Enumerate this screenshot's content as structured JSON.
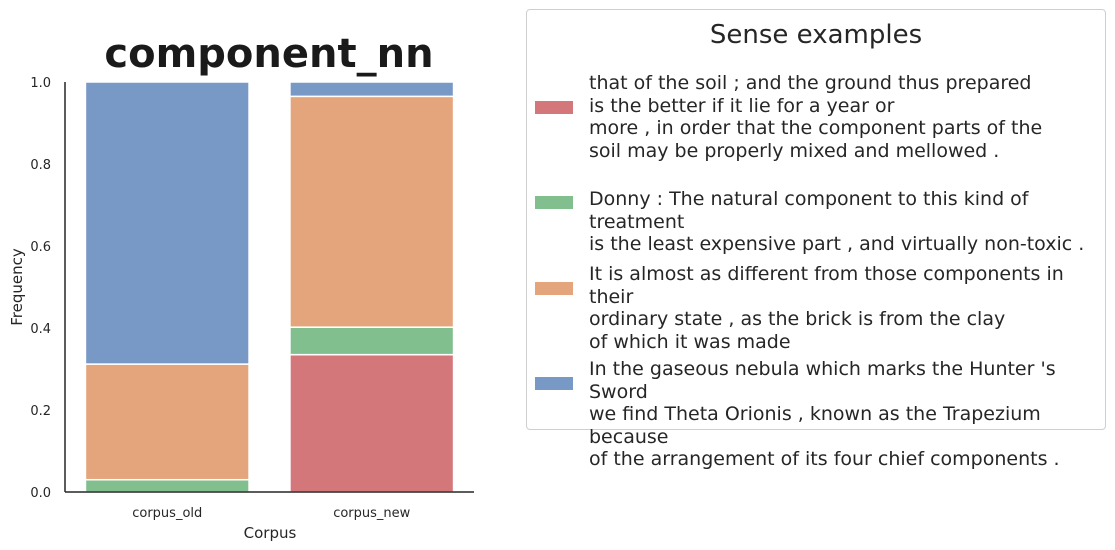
{
  "chart_data": {
    "type": "bar",
    "stacked": true,
    "title": "component_nn",
    "xlabel": "Corpus",
    "ylabel": "Frequency",
    "ylim": [
      0,
      1.0
    ],
    "yticks": [
      "0.0",
      "0.2",
      "0.4",
      "0.6",
      "0.8",
      "1.0"
    ],
    "categories": [
      "corpus_old",
      "corpus_new"
    ],
    "series": [
      {
        "key": "red",
        "color": "#d3777b",
        "values": [
          0.0,
          0.335
        ]
      },
      {
        "key": "green",
        "color": "#82bf8f",
        "values": [
          0.03,
          0.067
        ]
      },
      {
        "key": "orange",
        "color": "#e4a47c",
        "values": [
          0.282,
          0.563
        ]
      },
      {
        "key": "blue",
        "color": "#7898c6",
        "values": [
          0.688,
          0.035
        ]
      }
    ],
    "grid": false
  },
  "legend": {
    "title": "Sense examples",
    "entries": [
      {
        "color": "#d3777b",
        "text": "that of the soil ; and the ground thus prepared\nis the better if it lie for a year or\nmore , in order that the component parts of the\nsoil may be properly mixed and mellowed ."
      },
      {
        "color": "#82bf8f",
        "text": "Donny : The natural component to this kind of treatment\nis the least expensive part , and virtually non-toxic ."
      },
      {
        "color": "#e4a47c",
        "text": "It is almost as different from those components in their\nordinary state , as the brick is from the clay\nof which it was made"
      },
      {
        "color": "#7898c6",
        "text": "In the gaseous nebula which marks the Hunter 's Sword\nwe find Theta Orionis , known as the Trapezium because\nof the arrangement of its four chief components ."
      }
    ]
  }
}
